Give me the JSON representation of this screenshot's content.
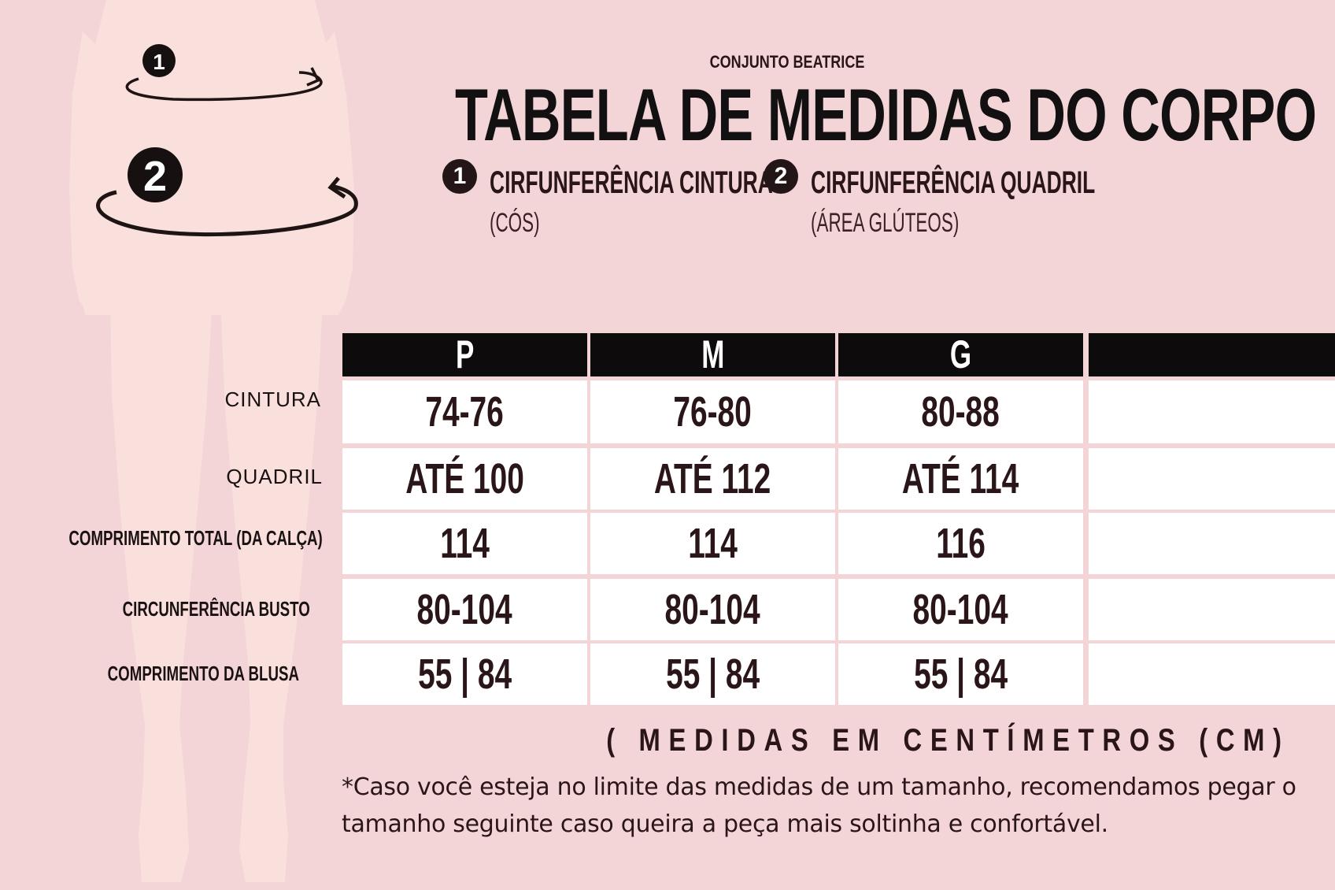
{
  "header": {
    "subtitle": "CONJUNTO BEATRICE",
    "title": "TABELA DE MEDIDAS DO CORPO"
  },
  "legend": [
    {
      "number": "1",
      "label": "CIRFUNFERÊNCIA CINTURA",
      "sublabel": "(CÓS)"
    },
    {
      "number": "2",
      "label": "CIRFUNFERÊNCIA QUADRIL",
      "sublabel": "(ÁREA GLÚTEOS)"
    }
  ],
  "figure": {
    "markers": [
      "1",
      "2"
    ]
  },
  "table": {
    "sizes": [
      "P",
      "M",
      "G",
      ""
    ],
    "rows": [
      {
        "label": "CINTURA",
        "values": [
          "74-76",
          "76-80",
          "80-88",
          ""
        ]
      },
      {
        "label": "QUADRIL",
        "values": [
          "ATÉ 100",
          "ATÉ 112",
          "ATÉ 114",
          ""
        ]
      },
      {
        "label": "COMPRIMENTO TOTAL (DA CALÇA)",
        "values": [
          "114",
          "114",
          "116",
          ""
        ]
      },
      {
        "label": "CIRCUNFERÊNCIA BUSTO",
        "values": [
          "80-104",
          "80-104",
          "80-104",
          ""
        ]
      },
      {
        "label": "COMPRIMENTO DA BLUSA",
        "values": [
          "55 | 84",
          "55 | 84",
          "55 | 84",
          ""
        ]
      }
    ]
  },
  "units": "( MEDIDAS EM CENTÍMETROS (CM)",
  "note": "*Caso você esteja no limite das medidas de um tamanho, recomendamos pegar o tamanho seguinte caso queira a peça mais soltinha e confortável.",
  "colors": {
    "background": "#f3d5d8",
    "figure": "#f7dcda",
    "header": "#0d0b0b",
    "text": "#2a1618"
  }
}
